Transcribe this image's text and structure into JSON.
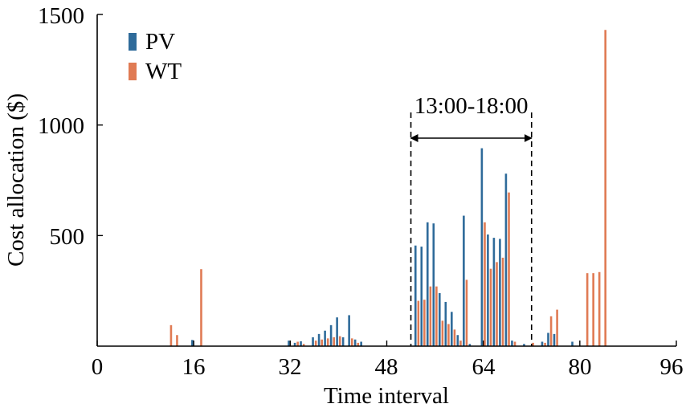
{
  "chart_data": {
    "type": "bar",
    "title": "",
    "xlabel": "Time interval",
    "ylabel": "Cost allocation ($)",
    "xlim": [
      0,
      96
    ],
    "ylim": [
      0,
      1500
    ],
    "xticks": [
      "0",
      "16",
      "32",
      "48",
      "64",
      "80",
      "96"
    ],
    "yticks": [
      "500",
      "1000",
      "1500"
    ],
    "legend": {
      "position": "top-left"
    },
    "annotation": {
      "label": "13:00-18:00",
      "x_start": 52,
      "x_end": 72
    },
    "series": [
      {
        "name": "PV",
        "color": "#2f6b9a",
        "points": [
          {
            "x": 16,
            "y": 28
          },
          {
            "x": 32,
            "y": 25
          },
          {
            "x": 33,
            "y": 15
          },
          {
            "x": 34,
            "y": 22
          },
          {
            "x": 36,
            "y": 40
          },
          {
            "x": 37,
            "y": 55
          },
          {
            "x": 38,
            "y": 70
          },
          {
            "x": 39,
            "y": 95
          },
          {
            "x": 40,
            "y": 130
          },
          {
            "x": 41,
            "y": 40
          },
          {
            "x": 42,
            "y": 140
          },
          {
            "x": 43,
            "y": 30
          },
          {
            "x": 44,
            "y": 20
          },
          {
            "x": 53,
            "y": 455
          },
          {
            "x": 54,
            "y": 450
          },
          {
            "x": 55,
            "y": 560
          },
          {
            "x": 56,
            "y": 555
          },
          {
            "x": 57,
            "y": 240
          },
          {
            "x": 58,
            "y": 200
          },
          {
            "x": 59,
            "y": 155
          },
          {
            "x": 60,
            "y": 50
          },
          {
            "x": 61,
            "y": 590
          },
          {
            "x": 62,
            "y": 10
          },
          {
            "x": 64,
            "y": 895
          },
          {
            "x": 65,
            "y": 505
          },
          {
            "x": 66,
            "y": 490
          },
          {
            "x": 67,
            "y": 485
          },
          {
            "x": 68,
            "y": 780
          },
          {
            "x": 69,
            "y": 25
          },
          {
            "x": 71,
            "y": 10
          },
          {
            "x": 74,
            "y": 20
          },
          {
            "x": 75,
            "y": 60
          },
          {
            "x": 76,
            "y": 55
          },
          {
            "x": 79,
            "y": 20
          }
        ]
      },
      {
        "name": "WT",
        "color": "#e07b54",
        "points": [
          {
            "x": 12,
            "y": 95
          },
          {
            "x": 13,
            "y": 50
          },
          {
            "x": 17,
            "y": 348
          },
          {
            "x": 33,
            "y": 20
          },
          {
            "x": 34,
            "y": 10
          },
          {
            "x": 36,
            "y": 25
          },
          {
            "x": 37,
            "y": 30
          },
          {
            "x": 38,
            "y": 35
          },
          {
            "x": 39,
            "y": 40
          },
          {
            "x": 40,
            "y": 45
          },
          {
            "x": 42,
            "y": 35
          },
          {
            "x": 43,
            "y": 15
          },
          {
            "x": 53,
            "y": 205
          },
          {
            "x": 54,
            "y": 210
          },
          {
            "x": 55,
            "y": 270
          },
          {
            "x": 56,
            "y": 270
          },
          {
            "x": 57,
            "y": 115
          },
          {
            "x": 58,
            "y": 100
          },
          {
            "x": 59,
            "y": 75
          },
          {
            "x": 60,
            "y": 25
          },
          {
            "x": 61,
            "y": 300
          },
          {
            "x": 64,
            "y": 560
          },
          {
            "x": 65,
            "y": 350
          },
          {
            "x": 66,
            "y": 380
          },
          {
            "x": 67,
            "y": 400
          },
          {
            "x": 68,
            "y": 695
          },
          {
            "x": 69,
            "y": 20
          },
          {
            "x": 72,
            "y": 15
          },
          {
            "x": 74,
            "y": 15
          },
          {
            "x": 75,
            "y": 135
          },
          {
            "x": 76,
            "y": 165
          },
          {
            "x": 81,
            "y": 330
          },
          {
            "x": 82,
            "y": 330
          },
          {
            "x": 83,
            "y": 335
          },
          {
            "x": 84,
            "y": 1430
          }
        ]
      }
    ]
  }
}
